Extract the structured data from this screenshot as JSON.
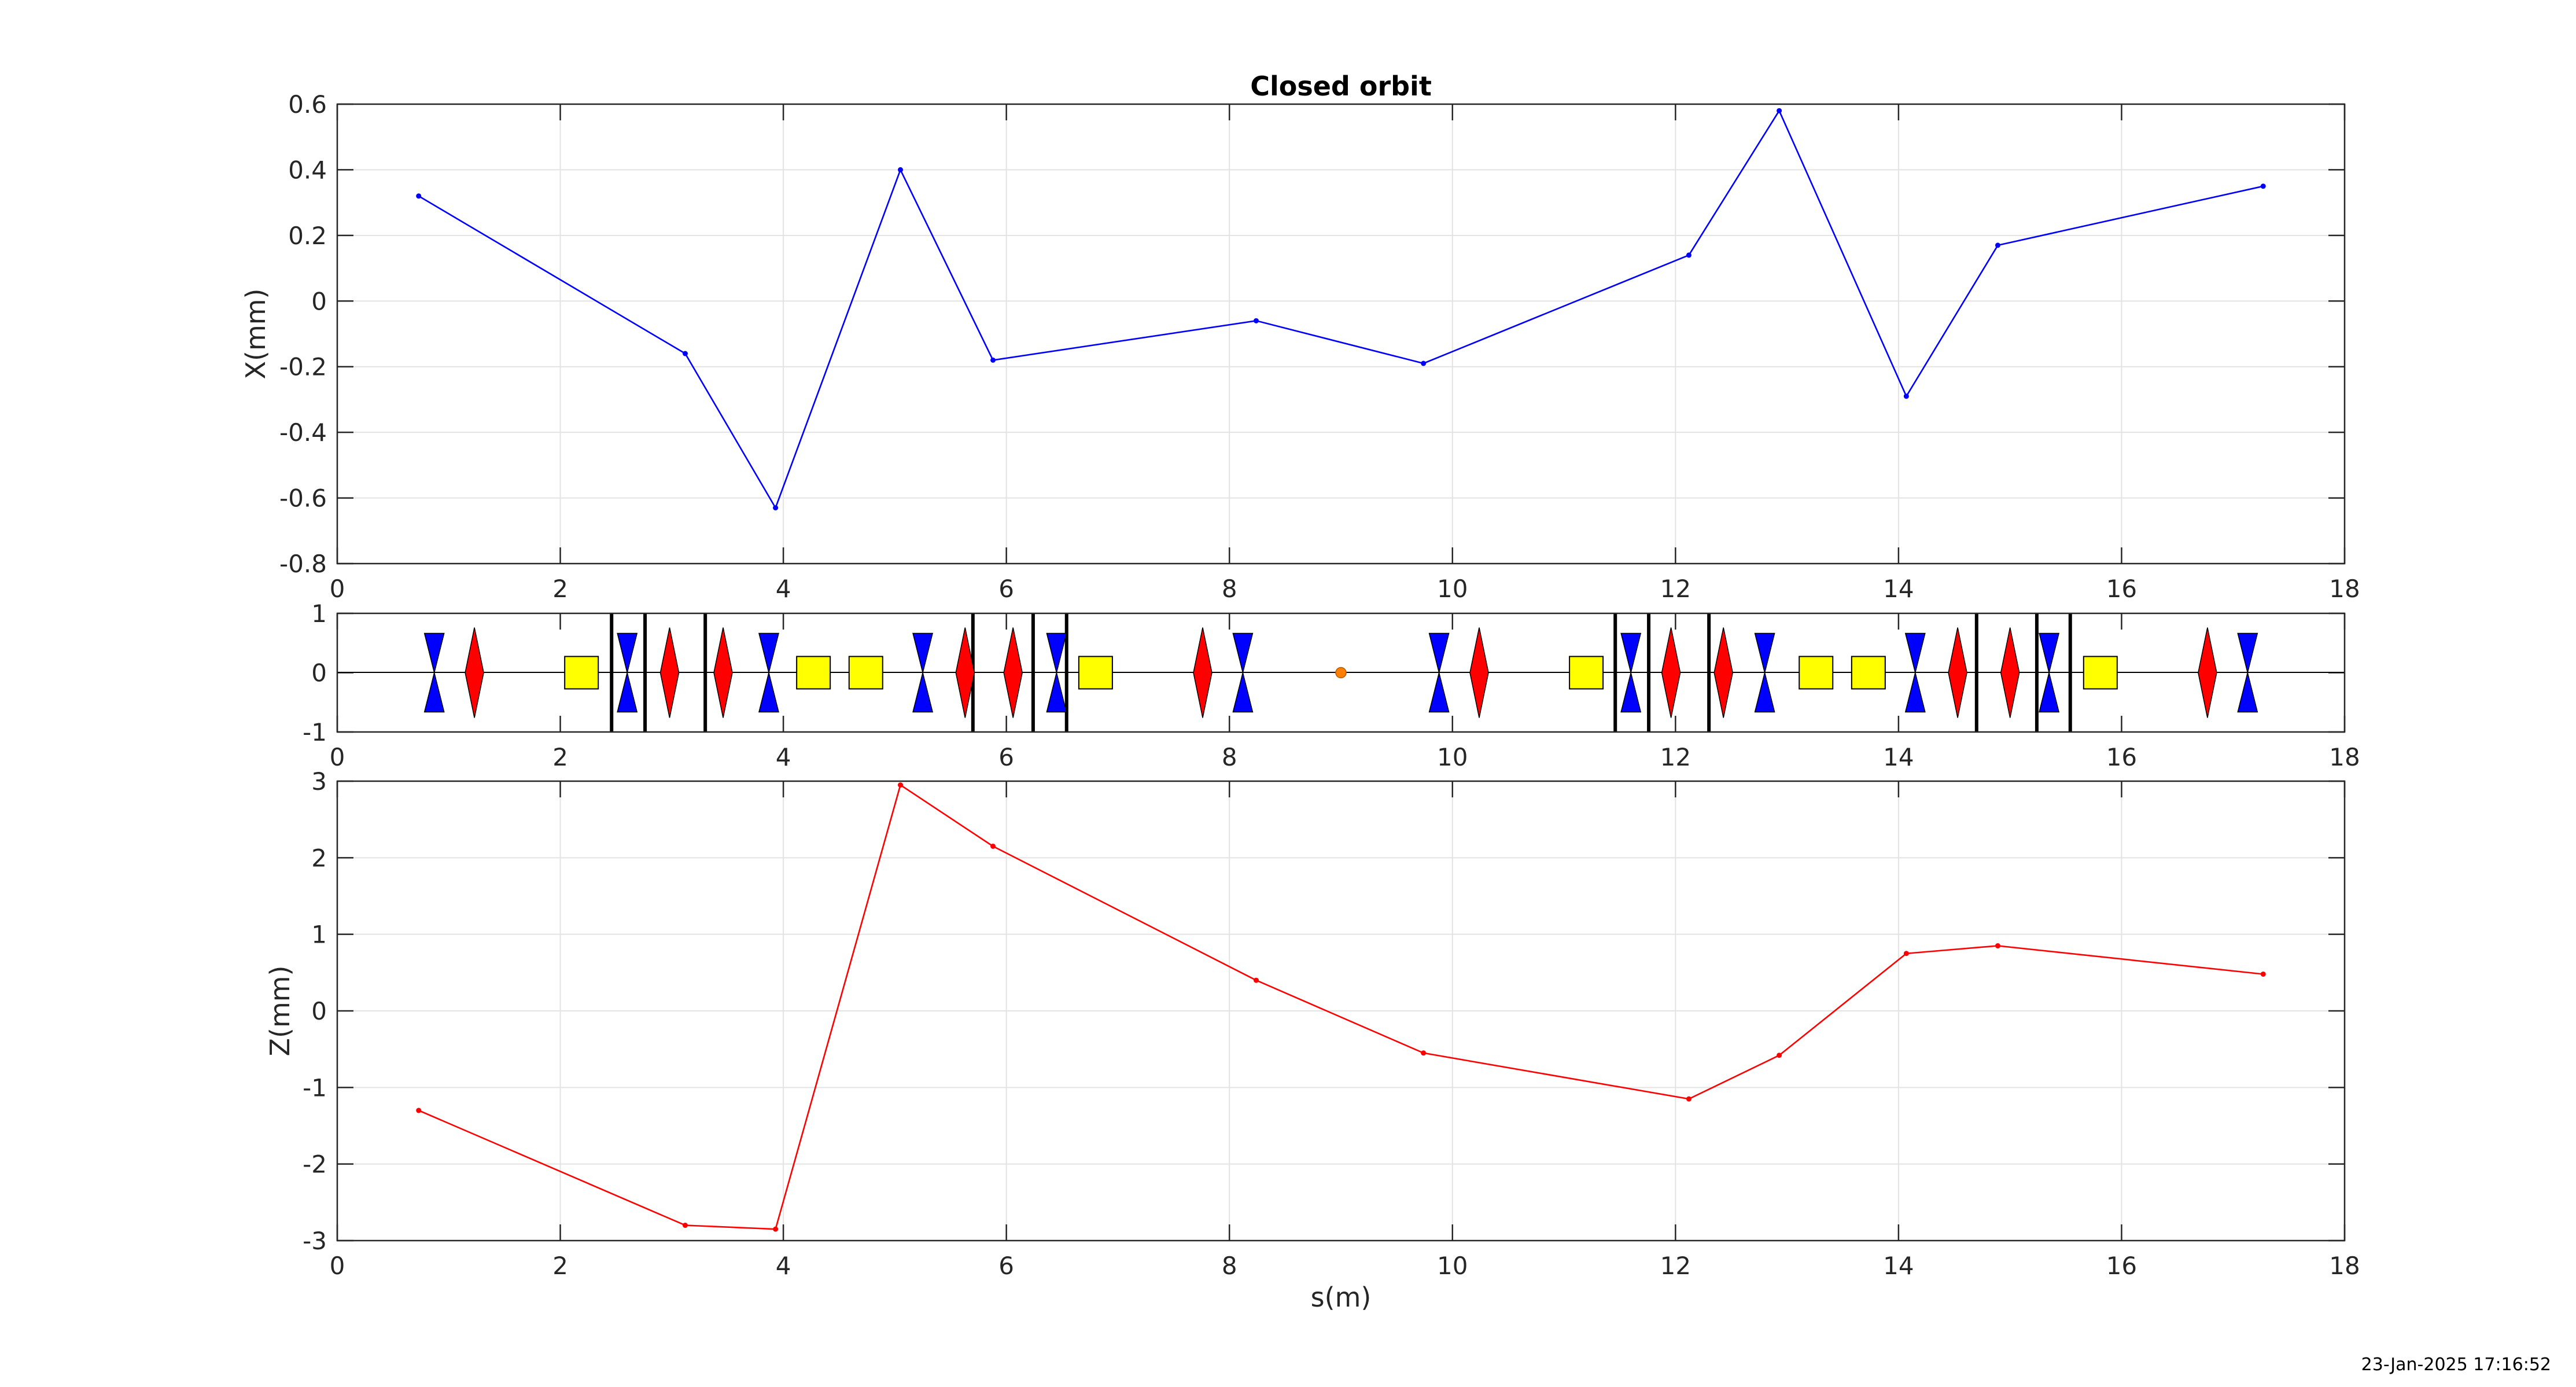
{
  "chart_data": [
    {
      "type": "line",
      "title": "Closed orbit",
      "xlabel": "",
      "ylabel": "X(mm)",
      "xlim": [
        0,
        18
      ],
      "ylim": [
        -0.8,
        0.6
      ],
      "xticks": [
        0,
        2,
        4,
        6,
        8,
        10,
        12,
        14,
        16,
        18
      ],
      "yticks": [
        -0.8,
        -0.6,
        -0.4,
        -0.2,
        0,
        0.2,
        0.4,
        0.6
      ],
      "ytick_labels": [
        "-0.8",
        "-0.6",
        "-0.4",
        "-0.2",
        "0",
        "0.2",
        "0.4",
        "0.6"
      ],
      "grid": true,
      "color": "#0000ff",
      "series": [
        {
          "x": [
            0.73,
            3.12,
            3.93,
            5.05,
            5.88,
            8.24,
            9.74,
            12.12,
            12.93,
            14.07,
            14.89,
            17.27
          ],
          "y": [
            0.32,
            -0.16,
            -0.63,
            0.4,
            -0.18,
            -0.06,
            -0.19,
            0.14,
            0.58,
            -0.29,
            0.17,
            0.35
          ]
        }
      ]
    },
    {
      "type": "lattice",
      "xlabel": "",
      "ylabel": "",
      "xlim": [
        0,
        18
      ],
      "ylim": [
        -1,
        1
      ],
      "xticks": [
        0,
        2,
        4,
        6,
        8,
        10,
        12,
        14,
        16,
        18
      ],
      "yticks": [
        -1,
        0,
        1
      ],
      "ytick_labels": [
        "-1",
        "0",
        "1"
      ],
      "grid": false,
      "colors": {
        "focusing_quad": "#ff0000",
        "defocusing_quad": "#0000ff",
        "sextupole": "#ffff00",
        "bpm": "#000000",
        "marker": "#ff8000"
      },
      "defocusing_quads": [
        0.87,
        2.6,
        3.87,
        5.25,
        6.45,
        8.12,
        9.88,
        11.6,
        12.8,
        14.15,
        15.35,
        17.13
      ],
      "focusing_quads": [
        1.23,
        2.98,
        3.46,
        5.63,
        6.06,
        7.76,
        10.24,
        11.96,
        12.43,
        14.53,
        15.0,
        16.77
      ],
      "sextupoles": [
        2.19,
        4.27,
        4.74,
        6.8,
        11.2,
        13.26,
        13.73,
        15.81
      ],
      "bpms": [
        2.46,
        2.76,
        3.3,
        5.7,
        6.24,
        6.54,
        11.46,
        11.76,
        12.3,
        14.7,
        15.24,
        15.54
      ],
      "marker": 9.0
    },
    {
      "type": "line",
      "xlabel": "s(m)",
      "ylabel": "Z(mm)",
      "xlim": [
        0,
        18
      ],
      "ylim": [
        -3,
        3
      ],
      "xticks": [
        0,
        2,
        4,
        6,
        8,
        10,
        12,
        14,
        16,
        18
      ],
      "yticks": [
        -3,
        -2,
        -1,
        0,
        1,
        2,
        3
      ],
      "ytick_labels": [
        "-3",
        "-2",
        "-1",
        "0",
        "1",
        "2",
        "3"
      ],
      "grid": true,
      "color": "#ff0000",
      "series": [
        {
          "x": [
            0.73,
            3.12,
            3.93,
            5.05,
            5.88,
            8.24,
            9.74,
            12.12,
            12.93,
            14.07,
            14.89,
            17.27
          ],
          "y": [
            -1.3,
            -2.8,
            -2.85,
            2.95,
            2.15,
            0.4,
            -0.55,
            -1.15,
            -0.58,
            0.75,
            0.85,
            0.48
          ]
        }
      ]
    }
  ],
  "timestamp": "23-Jan-2025 17:16:52"
}
